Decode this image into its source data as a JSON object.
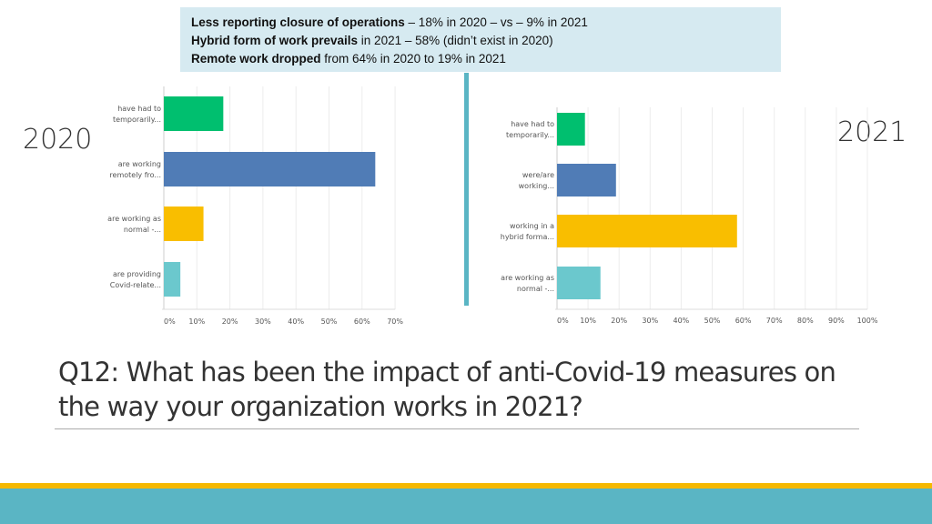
{
  "callout": {
    "lines": [
      {
        "bold": "Less reporting closure of operations",
        "rest": " – 18% in 2020 – vs – 9% in 2021"
      },
      {
        "bold": "Hybrid form of work prevails",
        "rest": " in 2021 – 58% (didn’t exist in 2020)"
      },
      {
        "bold": "Remote work dropped",
        "rest": " from 64% in 2020 to 19% in 2021"
      }
    ]
  },
  "slide_title": "Q12: What has been the impact of anti-Covid-19 measures on the way your organization works in 2021?",
  "chart_data": [
    {
      "type": "bar",
      "orientation": "horizontal",
      "label": "2020",
      "categories": [
        "have had to temporarily...",
        "are working remotely fro...",
        "are working as normal -...",
        "are providing Covid-relate..."
      ],
      "category_lines": [
        [
          "have had to",
          "temporarily..."
        ],
        [
          "are working",
          "remotely fro..."
        ],
        [
          "are working as",
          "normal -..."
        ],
        [
          "are providing",
          "Covid-relate..."
        ]
      ],
      "values": [
        18,
        64,
        12,
        5
      ],
      "colors": [
        "#00bf6f",
        "#507cb6",
        "#f9be00",
        "#6bc8cd"
      ],
      "xlim": [
        0,
        70
      ],
      "ticks": [
        "0%",
        "10%",
        "20%",
        "30%",
        "40%",
        "50%",
        "60%",
        "70%"
      ],
      "grid": true
    },
    {
      "type": "bar",
      "orientation": "horizontal",
      "label": "2021",
      "categories": [
        "have had to temporarily...",
        "were/are working...",
        "working in a hybrid forma...",
        "are working as normal -..."
      ],
      "category_lines": [
        [
          "have had to",
          "temporarily..."
        ],
        [
          "were/are",
          "working..."
        ],
        [
          "working in a",
          "hybrid forma..."
        ],
        [
          "are working as",
          "normal -..."
        ]
      ],
      "values": [
        9,
        19,
        58,
        14
      ],
      "colors": [
        "#00bf6f",
        "#507cb6",
        "#f9be00",
        "#6bc8cd"
      ],
      "xlim": [
        0,
        100
      ],
      "ticks": [
        "0%",
        "10%",
        "20%",
        "30%",
        "40%",
        "50%",
        "60%",
        "70%",
        "80%",
        "90%",
        "100%"
      ],
      "grid": true
    }
  ]
}
